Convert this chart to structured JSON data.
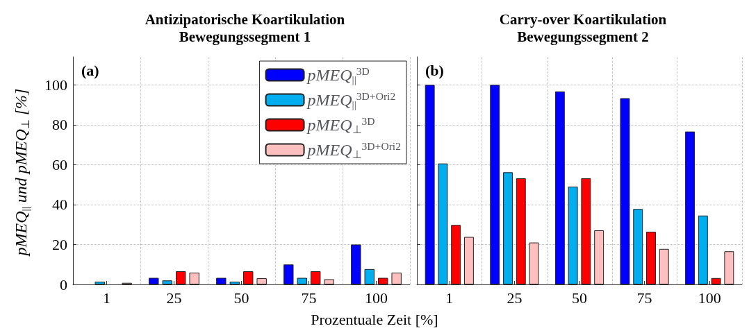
{
  "chart_data": [
    {
      "type": "bar",
      "title": "Antizipatorische Koartikulation",
      "subtitle": "Bewegungssegment 1",
      "xlabel": "Prozentuale Zeit [%]",
      "ylabel": "pMEQ$_{||}$ und pMEQ$_{⊥}$ [%]",
      "annotations": [
        "(a)"
      ],
      "categories": [
        "1",
        "25",
        "50",
        "75",
        "100"
      ],
      "series": [
        {
          "name": "pMEQ$_{||}$$^{3D}$",
          "color": "#0000ff",
          "values": [
            0,
            3.3,
            3.3,
            10,
            20
          ]
        },
        {
          "name": "pMEQ$_{||}$$^{3D+Ori2}$",
          "color": "#00adef",
          "values": [
            1.4,
            2.0,
            1.4,
            3.3,
            7.7
          ]
        },
        {
          "name": "pMEQ$_{⊥}$$^{3D}$",
          "color": "#ff0000",
          "values": [
            0,
            6.6,
            6.6,
            6.6,
            3.3
          ]
        },
        {
          "name": "pMEQ$_{⊥}$$^{3D+Ori2}$",
          "color": "#ffbfbf",
          "values": [
            0.8,
            5.9,
            3.1,
            2.6,
            5.9
          ]
        }
      ],
      "ylim": [
        0,
        114
      ],
      "yticks": [
        0,
        20,
        40,
        60,
        80,
        100
      ],
      "grid": true,
      "legend": "top right"
    },
    {
      "type": "bar",
      "title": "Carry-over Koartikulation",
      "subtitle": "Bewegungssegment 2",
      "annotations": [
        "(b)"
      ],
      "categories": [
        "1",
        "25",
        "50",
        "75",
        "100"
      ],
      "series": [
        {
          "color": "#0000ff",
          "values": [
            100,
            100,
            96.7,
            93.3,
            76.6
          ]
        },
        {
          "color": "#00adef",
          "values": [
            60.6,
            56.2,
            49,
            37.8,
            34.5
          ]
        },
        {
          "color": "#ff0000",
          "values": [
            29.8,
            53.2,
            53.2,
            26.4,
            3.2
          ]
        },
        {
          "color": "#ffbfbf",
          "values": [
            23.8,
            21.0,
            27.1,
            17.8,
            16.6
          ]
        }
      ],
      "ylim": [
        0,
        114
      ],
      "yticks": [
        0,
        20,
        40,
        60,
        80,
        100
      ],
      "grid": true,
      "tick_labels": "x"
    }
  ]
}
